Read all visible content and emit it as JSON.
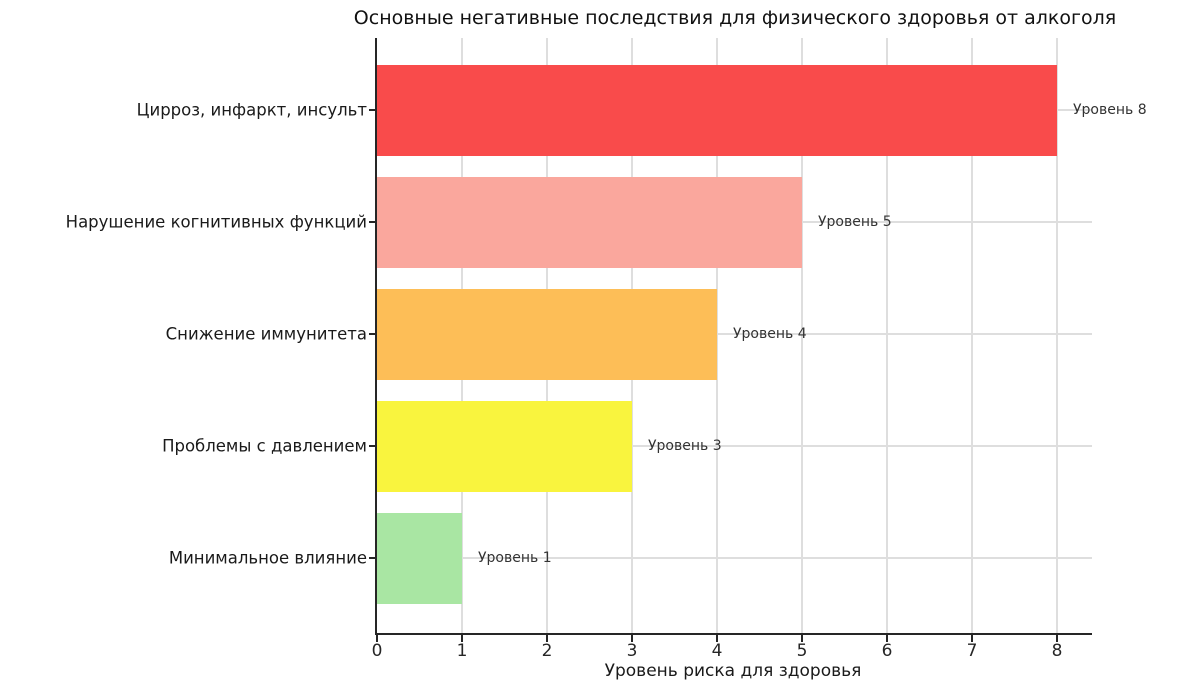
{
  "chart_data": {
    "type": "bar",
    "orientation": "horizontal",
    "title": "Основные негативные последствия для физического здоровья от алкоголя",
    "xlabel": "Уровень риска для здоровья",
    "ylabel": "",
    "xlim": [
      0,
      8.4
    ],
    "x_ticks": [
      0,
      1,
      2,
      3,
      4,
      5,
      6,
      7,
      8
    ],
    "grid": true,
    "legend": false,
    "categories": [
      "Цирроз, инфаркт, инсульт",
      "Нарушение когнитивных функций",
      "Снижение иммунитета",
      "Проблемы с давлением",
      "Минимальное влияние"
    ],
    "values": [
      8,
      5,
      4,
      3,
      1
    ],
    "bar_labels": [
      "Уровень 8",
      "Уровень 5",
      "Уровень 4",
      "Уровень 3",
      "Уровень 1"
    ],
    "bar_colors": [
      "#f94b4b",
      "#faa79d",
      "#fdbe57",
      "#f9f43e",
      "#a9e6a3"
    ],
    "axis_color": "#262626",
    "grid_color": "#dedede"
  }
}
